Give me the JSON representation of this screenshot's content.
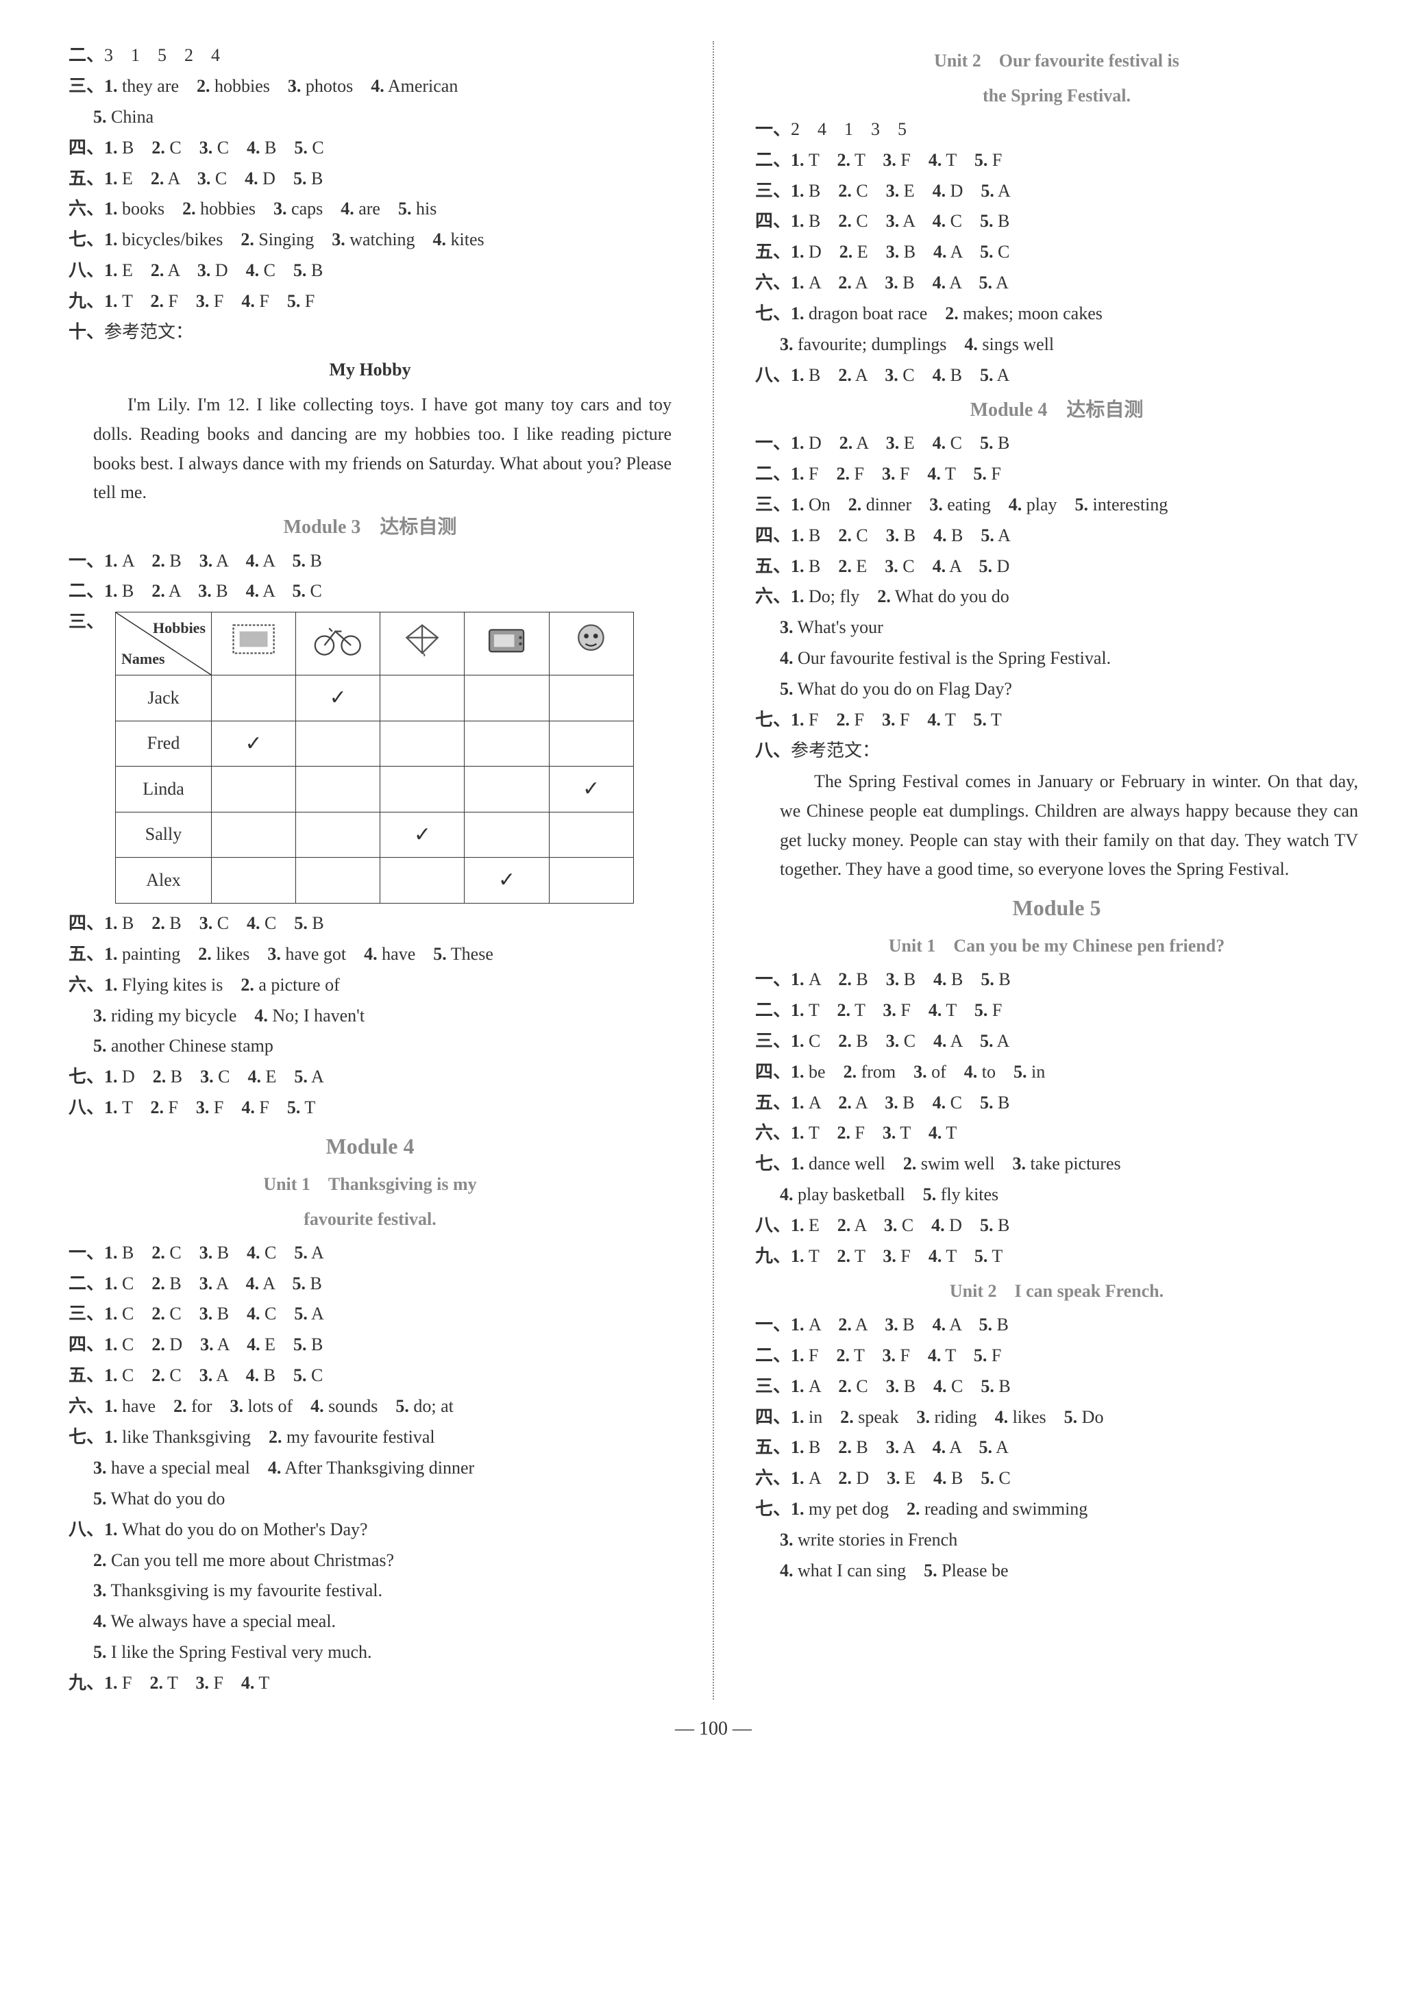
{
  "left": {
    "l1": "二、3　1　5　2　4",
    "l2": "三、1. they are　2. hobbies　3. photos　4. American",
    "l2b": "5. China",
    "l3": "四、1. B　2. C　3. C　4. B　5. C",
    "l4": "五、1. E　2. A　3. C　4. D　5. B",
    "l5": "六、1. books　2. hobbies　3. caps　4. are　5. his",
    "l6": "七、1. bicycles/bikes　2. Singing　3. watching　4. kites",
    "l7": "八、1. E　2. A　3. D　4. C　5. B",
    "l8": "九、1. T　2. F　3. F　4. F　5. F",
    "l9": "十、参考范文：",
    "essay_title": "My Hobby",
    "essay": "I'm Lily. I'm 12. I like collecting toys. I have got many toy cars and toy dolls. Reading books and dancing are my hobbies too. I like reading picture books best. I always dance with my friends on Saturday. What about you? Please tell me.",
    "mod3_title": "Module 3　达标自测",
    "m3_1": "一、1. A　2. B　3. A　4. A　5. B",
    "m3_2": "二、1. B　2. A　3. B　4. A　5. C",
    "m3_3_lbl": "三、",
    "table": {
      "top": "Hobbies",
      "bottom": "Names",
      "rows": [
        "Jack",
        "Fred",
        "Linda",
        "Sally",
        "Alex"
      ],
      "marks": {
        "Jack": [
          0,
          1,
          0,
          0,
          0
        ],
        "Fred": [
          1,
          0,
          0,
          0,
          0
        ],
        "Linda": [
          0,
          0,
          0,
          0,
          1
        ],
        "Sally": [
          0,
          0,
          1,
          0,
          0
        ],
        "Alex": [
          0,
          0,
          0,
          1,
          0
        ]
      }
    },
    "m3_4": "四、1. B　2. B　3. C　4. C　5. B",
    "m3_5": "五、1. painting　2. likes　3. have got　4. have　5. These",
    "m3_6a": "六、1. Flying kites is　2. a picture of",
    "m3_6b": "3. riding my bicycle　4. No; I haven't",
    "m3_6c": "5. another Chinese stamp",
    "m3_7": "七、1. D　2. B　3. C　4. E　5. A",
    "m3_8": "八、1. T　2. F　3. F　4. F　5. T",
    "mod4_title": "Module 4",
    "mod4_u1a": "Unit 1　Thanksgiving is my",
    "mod4_u1b": "favourite festival.",
    "u1_1": "一、1. B　2. C　3. B　4. C　5. A",
    "u1_2": "二、1. C　2. B　3. A　4. A　5. B",
    "u1_3": "三、1. C　2. C　3. B　4. C　5. A",
    "u1_4": "四、1. C　2. D　3. A　4. E　5. B",
    "u1_5": "五、1. C　2. C　3. A　4. B　5. C",
    "u1_6": "六、1. have　2. for　3. lots of　4. sounds　5. do; at",
    "u1_7a": "七、1. like Thanksgiving　2. my favourite festival",
    "u1_7b": "3. have a special meal　4. After Thanksgiving dinner",
    "u1_7c": "5. What do you do",
    "u1_8a": "八、1. What do you do on Mother's Day?",
    "u1_8b": "2. Can you tell me more about Christmas?",
    "u1_8c": "3. Thanksgiving is my favourite festival.",
    "u1_8d": "4. We always have a special meal.",
    "u1_8e": "5. I like the Spring Festival very much.",
    "u1_9": "九、1. F　2. T　3. F　4. T"
  },
  "right": {
    "u2_t1": "Unit 2　Our favourite festival is",
    "u2_t2": "the Spring Festival.",
    "r1": "一、2　4　1　3　5",
    "r2": "二、1. T　2. T　3. F　4. T　5. F",
    "r3": "三、1. B　2. C　3. E　4. D　5. A",
    "r4": "四、1. B　2. C　3. A　4. C　5. B",
    "r5": "五、1. D　2. E　3. B　4. A　5. C",
    "r6": "六、1. A　2. A　3. B　4. A　5. A",
    "r7a": "七、1. dragon boat race　2. makes; moon cakes",
    "r7b": "3. favourite; dumplings　4. sings well",
    "r8": "八、1. B　2. A　3. C　4. B　5. A",
    "mod4_test": "Module 4　达标自测",
    "t1": "一、1. D　2. A　3. E　4. C　5. B",
    "t2": "二、1. F　2. F　3. F　4. T　5. F",
    "t3": "三、1. On　2. dinner　3. eating　4. play　5. interesting",
    "t4": "四、1. B　2. C　3. B　4. B　5. A",
    "t5": "五、1. B　2. E　3. C　4. A　5. D",
    "t6a": "六、1. Do; fly　2. What do you do",
    "t6b": "3. What's your",
    "t6c": "4. Our favourite festival is the Spring Festival.",
    "t6d": "5. What do you do on Flag Day?",
    "t7": "七、1. F　2. F　3. F　4. T　5. T",
    "t8": "八、参考范文：",
    "essay2": "The Spring Festival comes in January or February in winter. On that day, we Chinese people eat dumplings. Children are always happy because they can get lucky money. People can stay with their family on that day. They watch TV together. They have a good time, so everyone loves the Spring Festival.",
    "mod5_title": "Module 5",
    "mod5_u1": "Unit 1　Can you be my Chinese pen friend?",
    "m5_1": "一、1. A　2. B　3. B　4. B　5. B",
    "m5_2": "二、1. T　2. T　3. F　4. T　5. F",
    "m5_3": "三、1. C　2. B　3. C　4. A　5. A",
    "m5_4": "四、1. be　2. from　3. of　4. to　5. in",
    "m5_5": "五、1. A　2. A　3. B　4. C　5. B",
    "m5_6": "六、1. T　2. F　3. T　4. T",
    "m5_7a": "七、1. dance well　2. swim well　3. take pictures",
    "m5_7b": "4. play basketball　5. fly kites",
    "m5_8": "八、1. E　2. A　3. C　4. D　5. B",
    "m5_9": "九、1. T　2. T　3. F　4. T　5. T",
    "mod5_u2": "Unit 2　I can speak French.",
    "u2_1": "一、1. A　2. A　3. B　4. A　5. B",
    "u2_2": "二、1. F　2. T　3. F　4. T　5. F",
    "u2_3": "三、1. A　2. C　3. B　4. C　5. B",
    "u2_4": "四、1. in　2. speak　3. riding　4. likes　5. Do",
    "u2_5": "五、1. B　2. B　3. A　4. A　5. A",
    "u2_6": "六、1. A　2. D　3. E　4. B　5. C",
    "u2_7a": "七、1. my pet dog　2. reading and swimming",
    "u2_7b": "3. write stories in French",
    "u2_7c": "4. what I can sing　5. Please be"
  },
  "pagenum": "— 100 —"
}
